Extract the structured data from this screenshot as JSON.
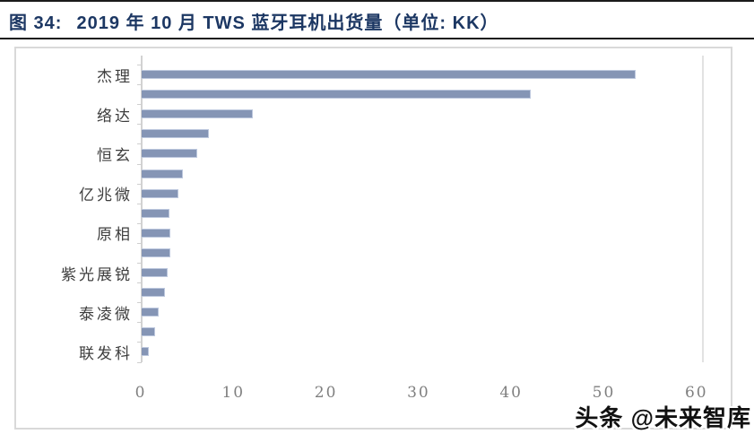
{
  "header": {
    "figure_label": "图 34:",
    "title": "2019 年 10 月 TWS 蓝牙耳机出货量（单位: KK）"
  },
  "watermark": "头条 @未来智库",
  "colors": {
    "title": "#1c3763",
    "bar_fill": "#8595b5",
    "bar_edge": "#bdc8de",
    "axis_line": "#d2d2d2",
    "tick_label": "#7f7f7f",
    "category_label": "#3d3d3d",
    "chart_border": "#d9d9d9",
    "rule": "#1a1a1a"
  },
  "chart_data": {
    "type": "bar",
    "orientation": "horizontal",
    "title": "2019 年 10 月 TWS 蓝牙耳机出货量（单位: KK）",
    "xlabel": "",
    "ylabel": "",
    "xlim": [
      0,
      60
    ],
    "x_ticks": [
      "0",
      "10",
      "20",
      "30",
      "40",
      "50",
      "60"
    ],
    "grid": false,
    "legend": false,
    "note": "15 bars top-to-bottom; only alternate bars carry category labels",
    "categories": [
      "杰理",
      "",
      "络达",
      "",
      "恒玄",
      "",
      "亿兆微",
      "",
      "原相",
      "",
      "紫光展锐",
      "",
      "泰凌微",
      "",
      "联发科"
    ],
    "values": [
      53.3,
      42,
      12,
      7.3,
      6,
      4.5,
      4,
      3,
      3.1,
      3.1,
      2.8,
      2.5,
      1.8,
      1.5,
      0.8
    ]
  }
}
